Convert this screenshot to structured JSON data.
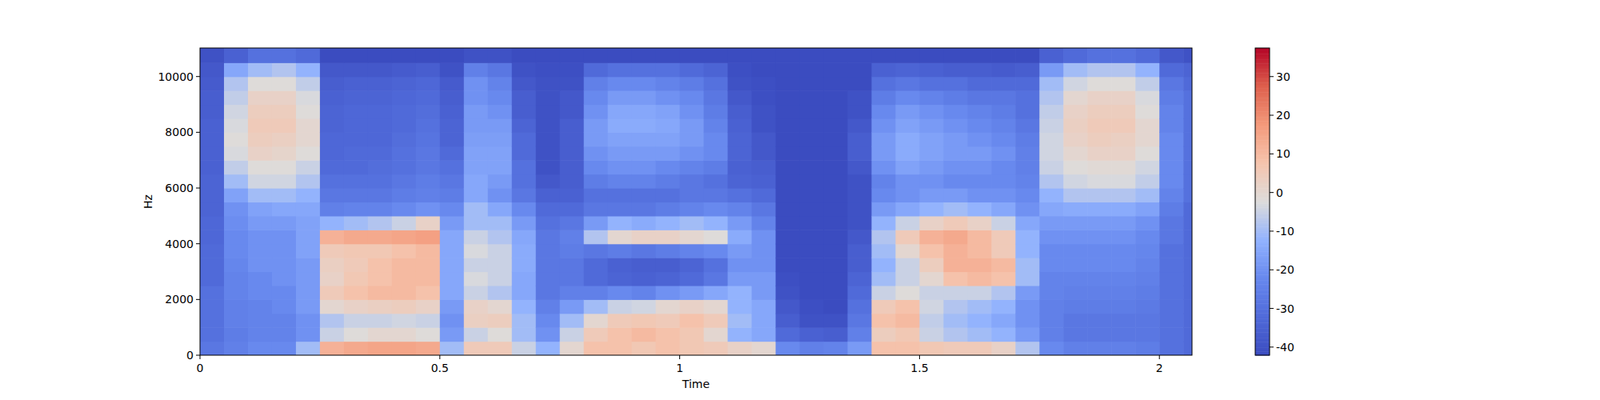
{
  "chart_data": {
    "type": "heatmap",
    "x_label": "Time",
    "y_label": "Hz",
    "color": "coolwarm",
    "xlim": [
      0,
      2.068
    ],
    "ylim": [
      0,
      11025
    ],
    "xticks": [
      0,
      0.5,
      1,
      1.5,
      2
    ],
    "yticks": [
      0,
      2000,
      4000,
      6000,
      8000,
      10000
    ],
    "clim": [
      -42.1,
      37.4
    ],
    "cticks": [
      -40,
      -30,
      -20,
      -10,
      0,
      10,
      20,
      30
    ],
    "x": [
      0,
      0.05,
      0.1,
      0.15,
      0.2,
      0.25,
      0.3,
      0.35,
      0.4,
      0.45,
      0.5,
      0.55,
      0.6,
      0.65,
      0.7,
      0.75,
      0.8,
      0.85,
      0.9,
      0.95,
      1.0,
      1.05,
      1.1,
      1.15,
      1.2,
      1.25,
      1.3,
      1.35,
      1.4,
      1.45,
      1.5,
      1.55,
      1.6,
      1.65,
      1.7,
      1.75,
      1.8,
      1.85,
      1.9,
      1.95,
      2.0,
      2.05
    ],
    "y": [
      0,
      500,
      1000,
      1500,
      2000,
      2500,
      3000,
      3500,
      4000,
      4500,
      5000,
      5500,
      6000,
      6500,
      7000,
      7500,
      8000,
      8500,
      9000,
      9500,
      10000,
      10500
    ],
    "values": [
      [
        -28,
        -30,
        -30,
        -30,
        -30,
        -32,
        -32,
        -32,
        -33,
        -33,
        -34,
        -34,
        -34,
        -35,
        -35,
        -35,
        -35,
        -36,
        -36,
        -37,
        -38,
        -40
      ],
      [
        -25,
        -26,
        -25,
        -25,
        -24,
        -24,
        -23,
        -22,
        -22,
        -21,
        -20,
        -16,
        -10,
        -6,
        -3,
        -2,
        -3,
        -4,
        -6,
        -8,
        -15,
        -35
      ],
      [
        -22,
        -24,
        -24,
        -24,
        -22,
        -22,
        -20,
        -20,
        -20,
        -18,
        -16,
        -10,
        -4,
        -2,
        2,
        4,
        5,
        4,
        2,
        -2,
        -10,
        -30
      ],
      [
        -22,
        -24,
        -24,
        -22,
        -22,
        -20,
        -20,
        -20,
        -20,
        -18,
        -15,
        -10,
        -4,
        -2,
        1,
        3,
        5,
        4,
        2,
        -2,
        -8,
        -30
      ],
      [
        -10,
        -20,
        -20,
        -18,
        -18,
        -18,
        -18,
        -16,
        -16,
        -16,
        -15,
        -12,
        -8,
        -5,
        -2,
        0,
        0,
        -2,
        -3,
        -6,
        -12,
        -32
      ],
      [
        12,
        -5,
        -8,
        0,
        5,
        2,
        3,
        5,
        12,
        -12,
        -25,
        -28,
        -30,
        -32,
        -33,
        -33,
        -34,
        -34,
        -35,
        -36,
        -38,
        -42
      ],
      [
        14,
        -2,
        -5,
        2,
        8,
        6,
        5,
        6,
        14,
        -10,
        -24,
        -28,
        -30,
        -32,
        -32,
        -33,
        -33,
        -33,
        -34,
        -35,
        -38,
        -42
      ],
      [
        15,
        0,
        -5,
        3,
        10,
        8,
        8,
        6,
        14,
        -8,
        -24,
        -28,
        -30,
        -31,
        -32,
        -33,
        -33,
        -33,
        -34,
        -35,
        -38,
        -42
      ],
      [
        15,
        0,
        -4,
        4,
        10,
        10,
        10,
        8,
        15,
        -5,
        -22,
        -26,
        -28,
        -30,
        -30,
        -31,
        -32,
        -32,
        -33,
        -34,
        -37,
        -42
      ],
      [
        14,
        -2,
        -5,
        2,
        8,
        10,
        10,
        10,
        16,
        2,
        -20,
        -25,
        -26,
        -28,
        -28,
        -29,
        -30,
        -31,
        -32,
        -33,
        -36,
        -42
      ],
      [
        -10,
        -18,
        -20,
        -18,
        -15,
        -15,
        -15,
        -15,
        -15,
        -18,
        -22,
        -26,
        -28,
        -30,
        -32,
        -34,
        -34,
        -35,
        -36,
        -37,
        -40,
        -42
      ],
      [
        5,
        -5,
        3,
        2,
        -5,
        -3,
        -5,
        -3,
        -5,
        -10,
        -10,
        -15,
        -15,
        -16,
        -16,
        -17,
        -18,
        -18,
        -20,
        -20,
        -25,
        -40
      ],
      [
        5,
        -2,
        4,
        0,
        -8,
        -5,
        -5,
        -5,
        -8,
        -10,
        -15,
        -20,
        -18,
        -16,
        -16,
        -17,
        -18,
        -20,
        -22,
        -24,
        -28,
        -40
      ],
      [
        -5,
        -10,
        -10,
        -12,
        -15,
        -15,
        -14,
        -14,
        -15,
        -18,
        -22,
        -28,
        -30,
        -30,
        -32,
        -32,
        -34,
        -36,
        -36,
        -38,
        -40,
        -42
      ],
      [
        -12,
        -20,
        -22,
        -25,
        -28,
        -28,
        -28,
        -28,
        -28,
        -30,
        -32,
        -35,
        -38,
        -40,
        -40,
        -40,
        -40,
        -40,
        -40,
        -40,
        -41,
        -42
      ],
      [
        0,
        -5,
        -10,
        -18,
        -25,
        -28,
        -28,
        -26,
        -25,
        -28,
        -32,
        -35,
        -36,
        -36,
        -36,
        -36,
        -36,
        -38,
        -38,
        -40,
        -41,
        -42
      ],
      [
        8,
        5,
        0,
        -10,
        -25,
        -32,
        -32,
        -28,
        -8,
        -18,
        -28,
        -30,
        -26,
        -22,
        -20,
        -18,
        -18,
        -20,
        -22,
        -25,
        -32,
        -42
      ],
      [
        8,
        8,
        5,
        -5,
        -22,
        -34,
        -35,
        -26,
        0,
        -12,
        -28,
        -30,
        -24,
        -20,
        -18,
        -16,
        -14,
        -15,
        -18,
        -22,
        -30,
        -42
      ],
      [
        6,
        10,
        6,
        -4,
        -24,
        -35,
        -36,
        -28,
        2,
        -14,
        -28,
        -30,
        -24,
        -20,
        -18,
        -16,
        -14,
        -15,
        -18,
        -22,
        -30,
        -42
      ],
      [
        8,
        8,
        5,
        0,
        -20,
        -34,
        -36,
        -26,
        2,
        -12,
        -26,
        -30,
        -26,
        -22,
        -18,
        -16,
        -15,
        -16,
        -20,
        -24,
        -30,
        -42
      ],
      [
        6,
        6,
        8,
        2,
        -18,
        -32,
        -34,
        -24,
        0,
        -10,
        -24,
        -28,
        -28,
        -24,
        -20,
        -18,
        -18,
        -20,
        -22,
        -26,
        -32,
        -42
      ],
      [
        5,
        0,
        5,
        0,
        -15,
        -28,
        -30,
        -22,
        -2,
        -12,
        -22,
        -28,
        -30,
        -26,
        -22,
        -22,
        -24,
        -26,
        -28,
        -30,
        -34,
        -42
      ],
      [
        2,
        -12,
        -10,
        -12,
        -12,
        -18,
        -20,
        -18,
        -14,
        -18,
        -24,
        -30,
        -34,
        -35,
        -34,
        -34,
        -35,
        -36,
        -38,
        -40,
        -41,
        -42
      ],
      [
        0,
        -15,
        -15,
        -15,
        -18,
        -18,
        -20,
        -20,
        -20,
        -24,
        -28,
        -32,
        -35,
        -36,
        -38,
        -38,
        -40,
        -40,
        -41,
        -41,
        -42,
        -42
      ],
      [
        -22,
        -32,
        -36,
        -38,
        -40,
        -41,
        -42,
        -42,
        -42,
        -42,
        -42,
        -42,
        -42,
        -42,
        -42,
        -42,
        -42,
        -42,
        -42,
        -42,
        -42,
        -42
      ],
      [
        -25,
        -35,
        -40,
        -41,
        -42,
        -42,
        -42,
        -42,
        -42,
        -42,
        -42,
        -42,
        -42,
        -42,
        -42,
        -42,
        -42,
        -42,
        -42,
        -42,
        -42,
        -42
      ],
      [
        -24,
        -36,
        -40,
        -42,
        -42,
        -42,
        -42,
        -42,
        -42,
        -42,
        -42,
        -42,
        -42,
        -42,
        -42,
        -42,
        -42,
        -42,
        -42,
        -42,
        -42,
        -42
      ],
      [
        -18,
        -25,
        -28,
        -30,
        -32,
        -34,
        -36,
        -36,
        -38,
        -40,
        -40,
        -40,
        -40,
        -38,
        -36,
        -36,
        -38,
        -40,
        -40,
        -42,
        -42,
        -42
      ],
      [
        8,
        4,
        8,
        5,
        -5,
        -10,
        -12,
        -10,
        -8,
        -12,
        -18,
        -22,
        -24,
        -20,
        -18,
        -18,
        -20,
        -22,
        -26,
        -30,
        -35,
        -42
      ],
      [
        8,
        6,
        10,
        8,
        -2,
        -5,
        -5,
        0,
        5,
        -5,
        -15,
        -20,
        -20,
        -16,
        -14,
        -14,
        -16,
        -18,
        -22,
        -28,
        -34,
        -42
      ],
      [
        6,
        -5,
        -6,
        -4,
        -5,
        0,
        4,
        8,
        12,
        2,
        -12,
        -18,
        -20,
        -18,
        -16,
        -16,
        -18,
        -20,
        -24,
        -30,
        -35,
        -42
      ],
      [
        5,
        -8,
        -10,
        -8,
        -5,
        8,
        12,
        12,
        14,
        5,
        -10,
        -18,
        -22,
        -20,
        -18,
        -18,
        -20,
        -22,
        -26,
        -30,
        -36,
        -42
      ],
      [
        5,
        -10,
        -12,
        -10,
        -5,
        10,
        12,
        10,
        10,
        2,
        -12,
        -20,
        -22,
        -20,
        -18,
        -20,
        -22,
        -24,
        -28,
        -32,
        -36,
        -42
      ],
      [
        2,
        -12,
        -15,
        -12,
        -8,
        8,
        10,
        5,
        5,
        -5,
        -15,
        -20,
        -22,
        -22,
        -20,
        -22,
        -24,
        -26,
        -28,
        -32,
        -37,
        -42
      ],
      [
        -8,
        -18,
        -20,
        -20,
        -18,
        -10,
        -10,
        -12,
        -12,
        -15,
        -20,
        -22,
        -24,
        -25,
        -25,
        -26,
        -28,
        -30,
        -30,
        -32,
        -36,
        -42
      ],
      [
        -22,
        -25,
        -25,
        -25,
        -24,
        -24,
        -22,
        -22,
        -20,
        -18,
        -15,
        -12,
        -8,
        -5,
        -4,
        -4,
        -5,
        -6,
        -8,
        -10,
        -18,
        -35
      ],
      [
        -25,
        -28,
        -28,
        -26,
        -25,
        -24,
        -22,
        -22,
        -20,
        -18,
        -14,
        -8,
        -4,
        -2,
        0,
        2,
        3,
        2,
        0,
        -4,
        -10,
        -32
      ],
      [
        -25,
        -28,
        -28,
        -26,
        -25,
        -24,
        -22,
        -22,
        -20,
        -18,
        -14,
        -8,
        -3,
        -1,
        2,
        4,
        5,
        4,
        2,
        -2,
        -8,
        -30
      ],
      [
        -25,
        -28,
        -28,
        -26,
        -25,
        -24,
        -22,
        -22,
        -20,
        -18,
        -14,
        -8,
        -3,
        -1,
        2,
        3,
        5,
        4,
        2,
        -2,
        -8,
        -30
      ],
      [
        -26,
        -28,
        -28,
        -27,
        -26,
        -25,
        -24,
        -23,
        -22,
        -20,
        -16,
        -10,
        -6,
        -4,
        -2,
        0,
        0,
        -2,
        -3,
        -6,
        -12,
        -32
      ],
      [
        -30,
        -30,
        -30,
        -30,
        -30,
        -30,
        -30,
        -30,
        -28,
        -28,
        -26,
        -24,
        -22,
        -22,
        -22,
        -22,
        -24,
        -24,
        -26,
        -28,
        -32,
        -38
      ],
      [
        -32,
        -32,
        -32,
        -32,
        -32,
        -32,
        -32,
        -32,
        -32,
        -32,
        -32,
        -30,
        -30,
        -30,
        -30,
        -30,
        -30,
        -30,
        -30,
        -32,
        -34,
        -40
      ]
    ]
  }
}
